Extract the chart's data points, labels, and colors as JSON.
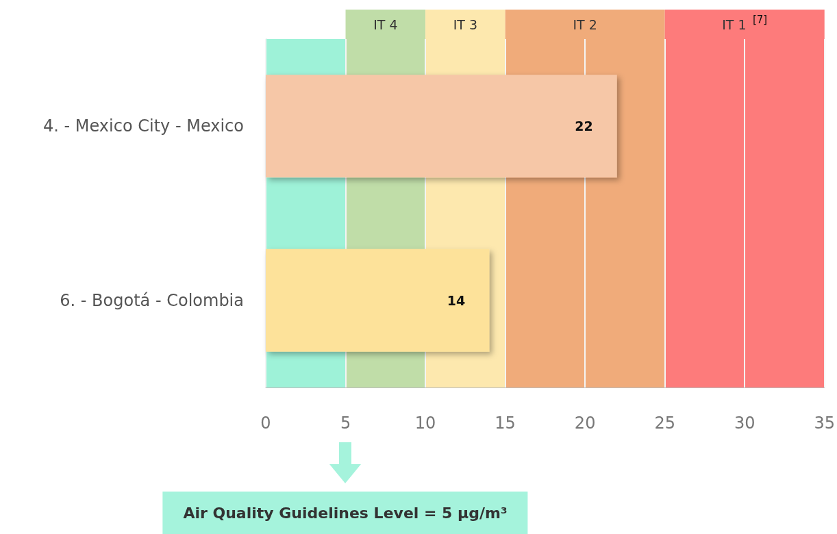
{
  "chart_data": {
    "type": "bar",
    "orientation": "horizontal",
    "categories": [
      "4. - Mexico City - Mexico",
      "6. - Bogotá - Colombia"
    ],
    "values": [
      22,
      14
    ],
    "colors": [
      "#f6c7a7",
      "#fde29a"
    ],
    "data_labels": true,
    "xlim": [
      0,
      35
    ],
    "xticks": [
      0,
      5,
      10,
      15,
      20,
      25,
      30,
      35
    ],
    "grid": "x",
    "bands": [
      {
        "axis": "x",
        "from": 0,
        "to": 5,
        "label": null,
        "color": "#9ef2d8"
      },
      {
        "axis": "x",
        "from": 5,
        "to": 10,
        "label": "IT 4",
        "color": "#c0dda8"
      },
      {
        "axis": "x",
        "from": 10,
        "to": 15,
        "label": "IT 3",
        "color": "#fde8ae"
      },
      {
        "axis": "x",
        "from": 15,
        "to": 25,
        "label": "IT 2",
        "color": "#f0ab7a"
      },
      {
        "axis": "x",
        "from": 25,
        "to": 35,
        "label": "IT 1 $^{[7]}$",
        "color": "#fd7b7b"
      }
    ],
    "annotations": [
      "Air Quality Guidelines Level = 5 µg/m³"
    ]
  }
}
